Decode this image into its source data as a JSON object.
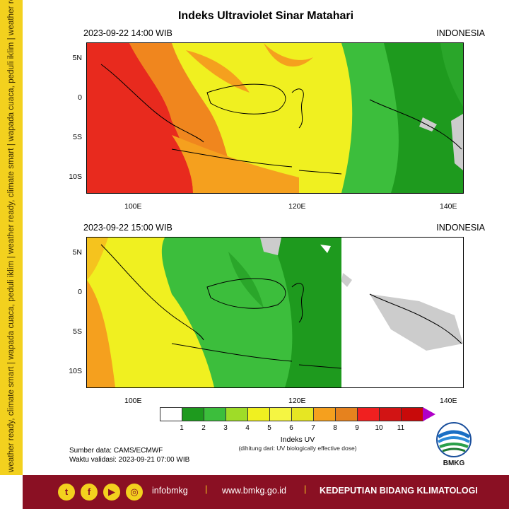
{
  "side_text": "weather ready, climate smart | wapada cuaca, peduli iklim | weather ready, climate smart | wapada cuaca, peduli iklim | weather ready, climate smart",
  "title": "Indeks Ultraviolet Sinar Matahari",
  "panels": [
    {
      "date": "2023-09-22  14:00 WIB",
      "region": "INDONESIA"
    },
    {
      "date": "2023-09-22  15:00 WIB",
      "region": "INDONESIA"
    }
  ],
  "lat_ticks": [
    "5N",
    "0",
    "5S",
    "10S"
  ],
  "lon_ticks": [
    "100E",
    "120E",
    "140E"
  ],
  "colorbar": {
    "colors": [
      "#ffffff",
      "#1e9a1e",
      "#3cbe3c",
      "#9fdc28",
      "#f0f020",
      "#f5f542",
      "#e6e623",
      "#f5a01e",
      "#e6821e",
      "#f02020",
      "#d21414",
      "#c80a0a",
      "#b0008c"
    ],
    "ticks": [
      "1",
      "2",
      "3",
      "4",
      "5",
      "6",
      "7",
      "8",
      "9",
      "10",
      "11"
    ],
    "title": "Indeks UV",
    "subtitle": "(dihitung dari: UV biologically effective dose)"
  },
  "source_line": "Sumber data: CAMS/ECMWF",
  "validity_line": "Waktu validasi: 2023-09-21 07:00 WIB",
  "logo_text": "BMKG",
  "footer": {
    "social_icons": [
      "twitter-icon",
      "facebook-icon",
      "youtube-icon",
      "instagram-icon"
    ],
    "handle": "infobmkg",
    "website": "www.bmkg.go.id",
    "department": "KEDEPUTIAN BIDANG KLIMATOLOGI",
    "bg_color": "#8a1023",
    "accent_color": "#f3d11e"
  }
}
